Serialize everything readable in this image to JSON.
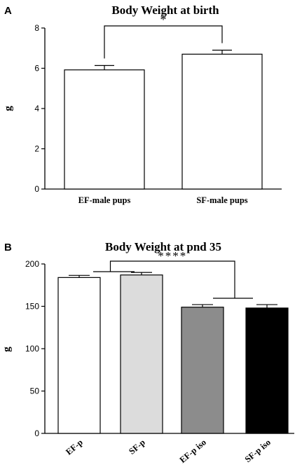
{
  "chart_data": [
    {
      "panel": "A",
      "type": "bar",
      "title": "Body Weight at birth",
      "xlabel": "",
      "ylabel": "g",
      "categories": [
        "EF-male pups",
        "SF-male pups"
      ],
      "values": [
        5.92,
        6.7
      ],
      "errors": [
        0.22,
        0.2
      ],
      "bar_colors": [
        "#ffffff",
        "#ffffff"
      ],
      "ylim": [
        0,
        8
      ],
      "yticks": [
        0,
        2,
        4,
        6,
        8
      ],
      "grid": false,
      "significance": [
        {
          "groups": [
            [
              0
            ],
            [
              1
            ]
          ],
          "label": "*"
        }
      ]
    },
    {
      "panel": "B",
      "type": "bar",
      "title": "Body Weight at pnd 35",
      "xlabel": "",
      "ylabel": "g",
      "categories": [
        "EF-p",
        "SF-p",
        "EF-p iso",
        "SF-p iso"
      ],
      "values": [
        184,
        187,
        149,
        148
      ],
      "errors": [
        2.5,
        3.0,
        3.0,
        4.0
      ],
      "bar_colors": [
        "#ffffff",
        "#dcdcdc",
        "#8c8c8c",
        "#000000"
      ],
      "ylim": [
        0,
        200
      ],
      "yticks": [
        0,
        50,
        100,
        150,
        200
      ],
      "grid": false,
      "significance": [
        {
          "groups": [
            [
              0,
              1
            ],
            [
              2,
              3
            ]
          ],
          "label": "****"
        }
      ]
    }
  ]
}
